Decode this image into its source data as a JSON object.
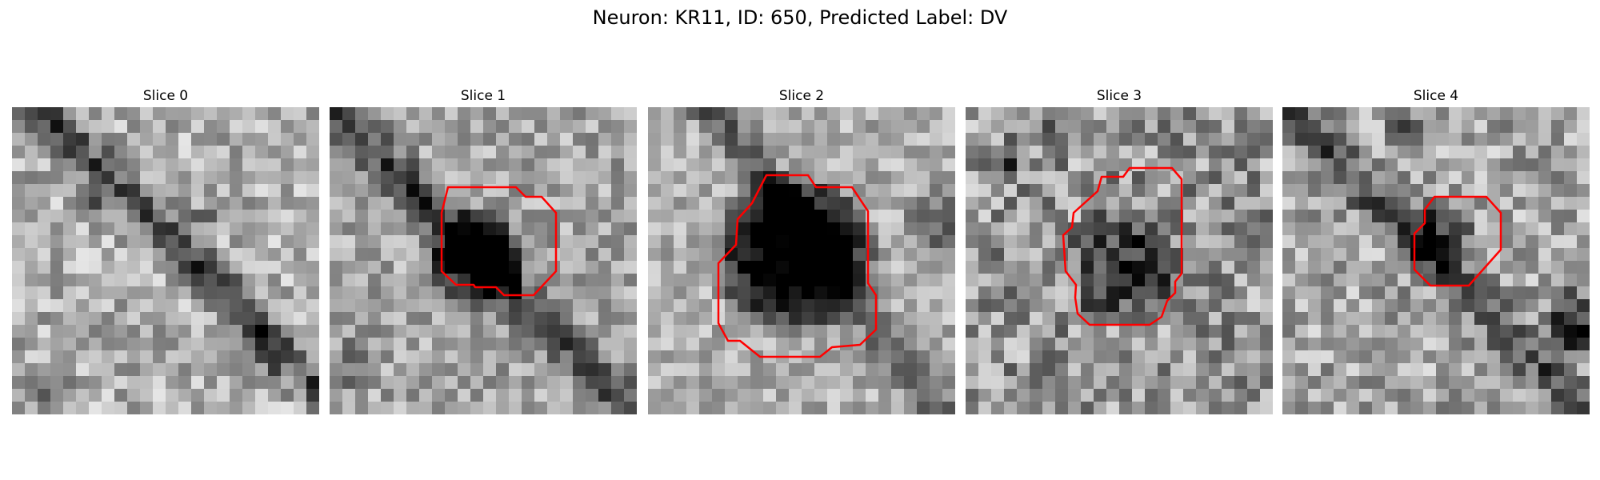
{
  "figure": {
    "title": "Neuron: KR11, ID: 650, Predicted Label: DV"
  },
  "contour_color": "#ff0000",
  "panels": [
    {
      "title": "Slice 0",
      "has_contour": false
    },
    {
      "title": "Slice 1",
      "has_contour": true
    },
    {
      "title": "Slice 2",
      "has_contour": true
    },
    {
      "title": "Slice 3",
      "has_contour": true
    },
    {
      "title": "Slice 4",
      "has_contour": true
    }
  ]
}
